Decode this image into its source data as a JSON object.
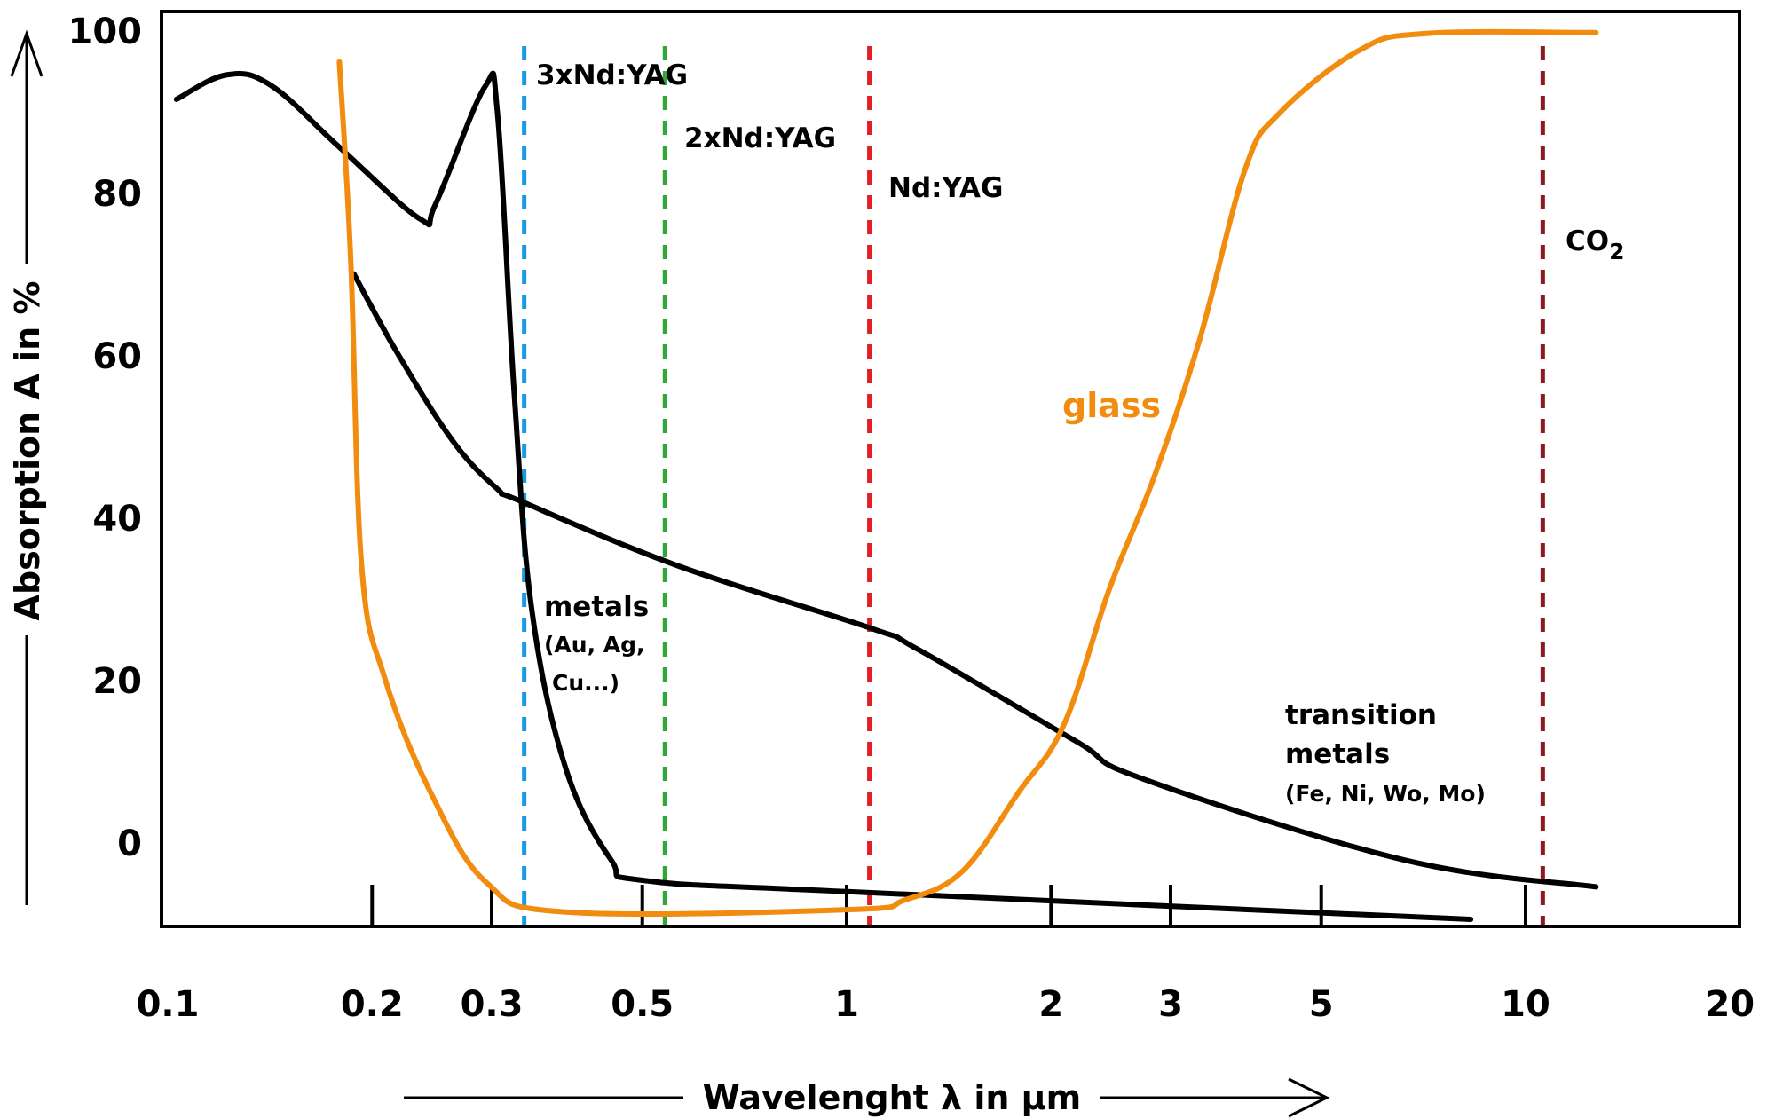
{
  "chart_data": {
    "type": "line",
    "title": "",
    "xlabel": "Wavelenght λ in µm",
    "ylabel": "Absorption A in %",
    "xscale": "log",
    "xlim": [
      0.08,
      22
    ],
    "ylim": [
      -10,
      100
    ],
    "grid": false,
    "x_tick_labels": [
      "0.1",
      "0.2",
      "0.3",
      "0.5",
      "1",
      "2",
      "3",
      "5",
      "10",
      "20"
    ],
    "x_tick_label_values": [
      0.1,
      0.2,
      0.3,
      0.5,
      1,
      2,
      3,
      5,
      10,
      20
    ],
    "x_tick_marks": [
      0.2,
      0.3,
      0.5,
      1,
      2,
      3,
      5,
      10
    ],
    "y_tick_labels": [
      "100",
      "80",
      "60",
      "40",
      "20",
      "0"
    ],
    "y_tick_label_values": [
      100,
      80,
      60,
      40,
      20,
      0
    ],
    "series": [
      {
        "name": "metals (Au, Ag, Cu...)",
        "color": "#000000",
        "label": [
          "metals",
          "(Au, Ag,",
          "Cu...)"
        ],
        "points": [
          [
            0.103,
            91.6
          ],
          [
            0.122,
            94.6
          ],
          [
            0.142,
            93.3
          ],
          [
            0.179,
            85.7
          ],
          [
            0.235,
            76.9
          ],
          [
            0.248,
            78.7
          ],
          [
            0.293,
            93.1
          ],
          [
            0.306,
            89.8
          ],
          [
            0.324,
            55.1
          ],
          [
            0.344,
            28.5
          ],
          [
            0.386,
            9.1
          ],
          [
            0.45,
            -2.1
          ],
          [
            0.502,
            -4.6
          ],
          [
            1.01,
            -6.0
          ],
          [
            8.3,
            -9.4
          ]
        ]
      },
      {
        "name": "transition metals (Fe, Ni, Wo, Mo)",
        "color": "#000000",
        "label": [
          "transition",
          "metals",
          "(Fe, Ni, Wo, Mo)"
        ],
        "points": [
          [
            0.188,
            70.1
          ],
          [
            0.217,
            60.6
          ],
          [
            0.263,
            49.5
          ],
          [
            0.306,
            43.6
          ],
          [
            0.331,
            42.1
          ],
          [
            0.566,
            34.1
          ],
          [
            1.09,
            26.4
          ],
          [
            1.27,
            23.9
          ],
          [
            2.17,
            12.6
          ],
          [
            2.73,
            7.9
          ],
          [
            6.63,
            -2.1
          ],
          [
            12.7,
            -5.4
          ]
        ]
      },
      {
        "name": "glass",
        "color": "#f28c0f",
        "label": [
          "glass"
        ],
        "points": [
          [
            0.179,
            96.2
          ],
          [
            0.186,
            71.8
          ],
          [
            0.193,
            34.1
          ],
          [
            0.209,
            20.2
          ],
          [
            0.244,
            6.2
          ],
          [
            0.295,
            -4.9
          ],
          [
            0.386,
            -8.5
          ],
          [
            1.01,
            -8.2
          ],
          [
            1.22,
            -7.0
          ],
          [
            1.48,
            -3.5
          ],
          [
            1.79,
            6.2
          ],
          [
            2.09,
            14.6
          ],
          [
            2.44,
            31.4
          ],
          [
            2.84,
            45.2
          ],
          [
            3.31,
            62.0
          ],
          [
            3.86,
            82.9
          ],
          [
            4.33,
            89.8
          ],
          [
            5.68,
            97.6
          ],
          [
            7.14,
            99.7
          ],
          [
            12.7,
            99.8
          ]
        ]
      }
    ],
    "laser_lines": [
      {
        "name": "3xNd:YAG",
        "wavelength": 0.335,
        "color": "#1a9be0"
      },
      {
        "name": "2xNd:YAG",
        "wavelength": 0.54,
        "color": "#2ea836"
      },
      {
        "name": "Nd:YAG",
        "wavelength": 1.08,
        "color": "#e41e24"
      },
      {
        "name": "CO2",
        "wavelength": 10.6,
        "color": "#8b1a22"
      }
    ]
  },
  "labels": {
    "laser_3x": "3xNd:YAG",
    "laser_2x": "2xNd:YAG",
    "laser_nd": "Nd:YAG",
    "laser_co2_main": "CO",
    "laser_co2_sub": "2",
    "glass": "glass",
    "metals_line1": "metals",
    "metals_line2": "(Au, Ag,",
    "metals_line3": "Cu...)",
    "tm_line1": "transition",
    "tm_line2": "metals",
    "tm_line3": "(Fe, Ni, Wo, Mo)",
    "xlabel": "Wavelenght λ in µm",
    "ylabel": "Absorption A in %"
  }
}
